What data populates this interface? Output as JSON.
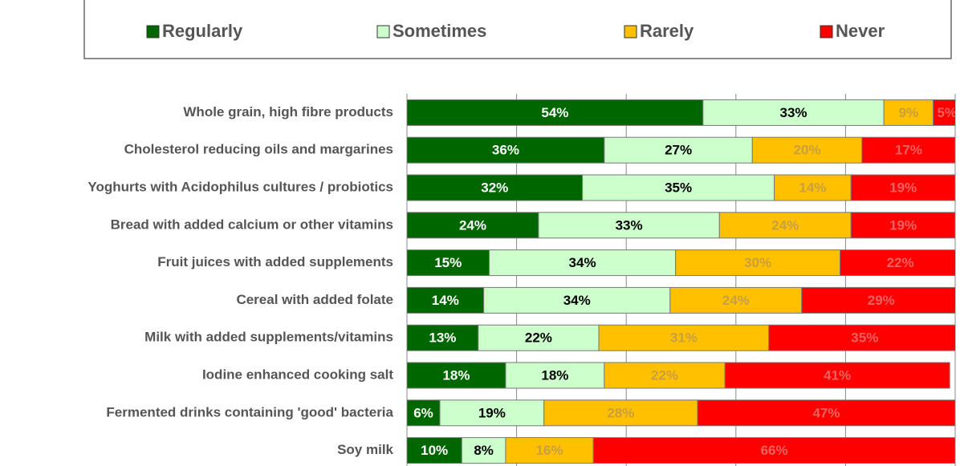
{
  "chart_data": {
    "type": "stacked_barh",
    "categories": [
      "Whole grain, high fibre products",
      "Cholesterol reducing oils and margarines",
      "Yoghurts with Acidophilus cultures / probiotics",
      "Bread with added calcium or other vitamins",
      "Fruit juices with added supplements",
      "Cereal with added folate",
      "Milk with added supplements/vitamins",
      "Iodine enhanced cooking salt",
      "Fermented drinks containing 'good' bacteria",
      "Soy milk"
    ],
    "series": [
      {
        "name": "Regularly",
        "color": "#006600",
        "label_color": "#ffffff",
        "values": [
          54,
          36,
          32,
          24,
          15,
          14,
          13,
          18,
          6,
          10
        ],
        "value_labels": [
          "54%",
          "36%",
          "32%",
          "24%",
          "15%",
          "14%",
          "13%",
          "18%",
          "6%",
          "10%"
        ]
      },
      {
        "name": "Sometimes",
        "color": "#ccffcc",
        "label_color": "#000000",
        "values": [
          33,
          27,
          35,
          33,
          34,
          34,
          22,
          18,
          19,
          8
        ],
        "value_labels": [
          "33%",
          "27%",
          "35%",
          "33%",
          "34%",
          "34%",
          "22%",
          "18%",
          "19%",
          "8%"
        ]
      },
      {
        "name": "Rarely",
        "color": "#ffc000",
        "label_color": "#c8a040",
        "values": [
          9,
          20,
          14,
          24,
          30,
          24,
          31,
          22,
          28,
          16
        ],
        "value_labels": [
          "9%",
          "20%",
          "14%",
          "24%",
          "30%",
          "24%",
          "31%",
          "22%",
          "28%",
          "16%"
        ]
      },
      {
        "name": "Never",
        "color": "#ff0000",
        "label_color": "#f06060",
        "values": [
          5,
          17,
          19,
          19,
          22,
          29,
          35,
          41,
          47,
          66
        ],
        "value_labels": [
          "5%",
          "17%",
          "19%",
          "19%",
          "22%",
          "29%",
          "35%",
          "41%",
          "47%",
          "66%"
        ]
      }
    ],
    "xlim": [
      0,
      100
    ],
    "xticks": [
      0,
      20,
      40,
      60,
      80,
      100
    ],
    "grid": true,
    "legend": "top"
  }
}
